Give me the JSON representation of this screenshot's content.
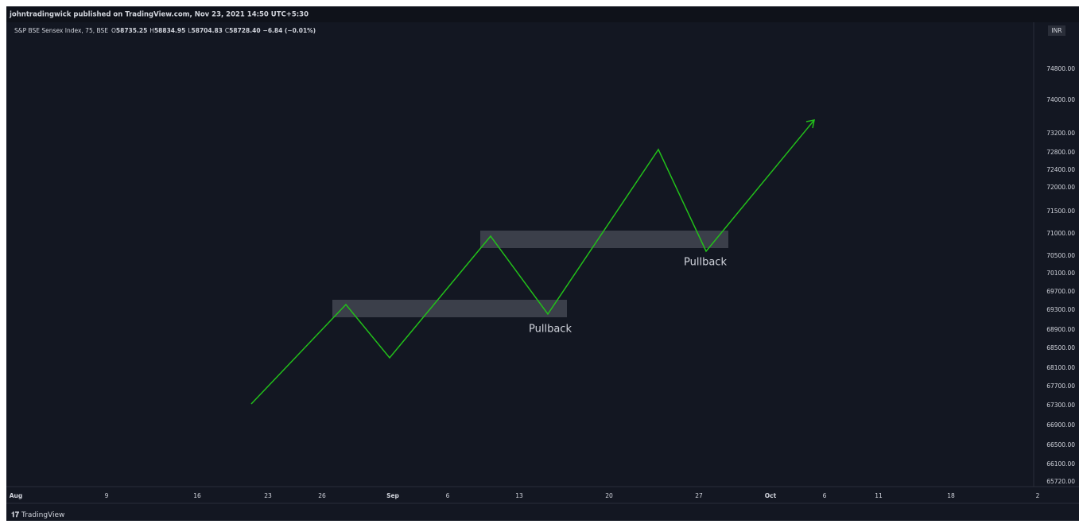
{
  "header": {
    "published": "johntradingwick published on TradingView.com, Nov 23, 2021 14:50 UTC+5:30"
  },
  "legend": {
    "symbol": "S&P BSE Sensex Index, 75, BSE",
    "open_label": "O",
    "open": "58735.25",
    "high_label": "H",
    "high": "58834.95",
    "low_label": "L",
    "low": "58704.83",
    "close_label": "C",
    "close": "58728.40",
    "change": "−6.84 (−0.01%)"
  },
  "price_axis": {
    "currency": "INR",
    "labels": [
      "74800.00",
      "74000.00",
      "73200.00",
      "72800.00",
      "72400.00",
      "72000.00",
      "71500.00",
      "71000.00",
      "70500.00",
      "70100.00",
      "69700.00",
      "69300.00",
      "68900.00",
      "68500.00",
      "68100.00",
      "67700.00",
      "67300.00",
      "66900.00",
      "66500.00",
      "66100.00",
      "65720.00"
    ]
  },
  "time_axis": {
    "labels": [
      "Aug",
      "9",
      "16",
      "23",
      "26",
      "Sep",
      "6",
      "13",
      "20",
      "27",
      "Oct",
      "6",
      "11",
      "18",
      "2"
    ]
  },
  "annotations": [
    "Pullback",
    "Pullback"
  ],
  "footer": {
    "brand": "TradingView"
  }
}
